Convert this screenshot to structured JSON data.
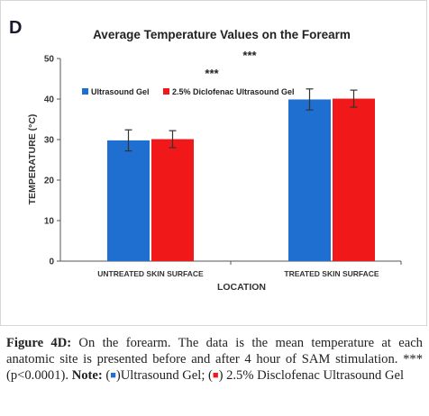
{
  "panel_letter": "D",
  "chart_data": {
    "type": "bar",
    "title": "Average Temperature Values on the Forearm",
    "xlabel": "LOCATION",
    "ylabel": "TEMPERATURE (°C)",
    "ylim": [
      0,
      50
    ],
    "yticks": [
      "0",
      "10",
      "20",
      "30",
      "40",
      "50"
    ],
    "categories": [
      "UNTREATED SKIN SURFACE",
      "TREATED SKIN SURFACE"
    ],
    "series": [
      {
        "name": "Ultrasound Gel",
        "color": "#1f6fd1",
        "values": [
          29.8,
          39.9
        ],
        "errors": [
          2.6,
          2.6
        ]
      },
      {
        "name": "2.5% Diclofenac Ultrasound Gel",
        "color": "#f01818",
        "values": [
          30.1,
          40.1
        ],
        "errors": [
          2.1,
          2.1
        ]
      }
    ],
    "annotations": [
      "***",
      "***"
    ],
    "legend_position": "top-left",
    "grid": false
  },
  "caption": {
    "label": "Figure 4D:",
    "text": " On the forearm. The data is the mean temperature at each anatomic site is presented before and after 4 hour of SAM stimulation. ***(p<0.0001). ",
    "note_label": "Note:",
    "note_open1": " (",
    "note_close1": ")Ultrasound Gel; (",
    "note_close2": ") 2.5% Disclofenac Ultrasound Gel"
  }
}
